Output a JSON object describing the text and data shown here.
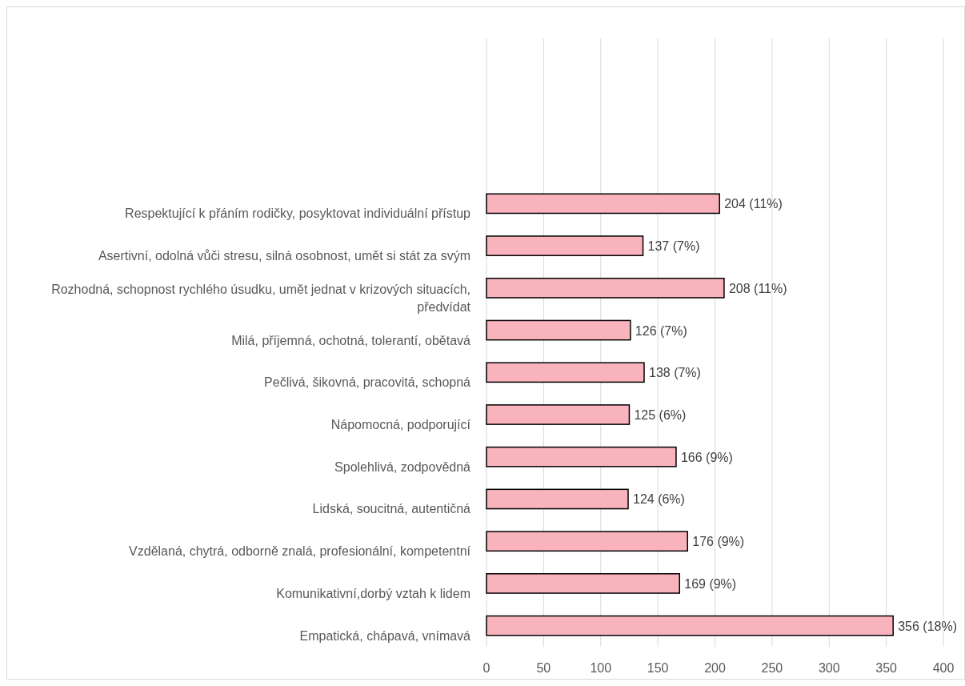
{
  "chart_data": {
    "type": "bar",
    "orientation": "horizontal",
    "categories": [
      "Respektující k přáním rodičky, posyktovat individuální přístup",
      "Asertivní, odolná vůči stresu, silná osobnost, umět si stát za svým",
      "Rozhodná, schopnost rychlého úsudku, umět jednat v krizových situacích, předvídat",
      "Milá, příjemná, ochotná, tolerantí, obětavá",
      "Pečlivá, šikovná, pracovitá, schopná",
      "Nápomocná, podporující",
      "Spolehlivá, zodpovědná",
      "Lidská, soucitná, autentičná",
      "Vzdělaná, chytrá, odborně znalá, profesionální, kompetentní",
      "Komunikativní,dorbý vztah k lidem",
      "Empatická, chápavá, vnímavá"
    ],
    "values": [
      204,
      137,
      208,
      126,
      138,
      125,
      166,
      124,
      176,
      169,
      356
    ],
    "value_labels": [
      "204 (11%)",
      "137 (7%)",
      "208 (11%)",
      "126 (7%)",
      "138 (7%)",
      "125 (6%)",
      "166 (9%)",
      "124 (6%)",
      "176 (9%)",
      "169 (9%)",
      "356 (18%)"
    ],
    "color": "#f9b3bd",
    "xlim": [
      0,
      400
    ],
    "xticks": [
      0,
      50,
      100,
      150,
      200,
      250,
      300,
      350,
      400
    ],
    "grid": "x"
  }
}
